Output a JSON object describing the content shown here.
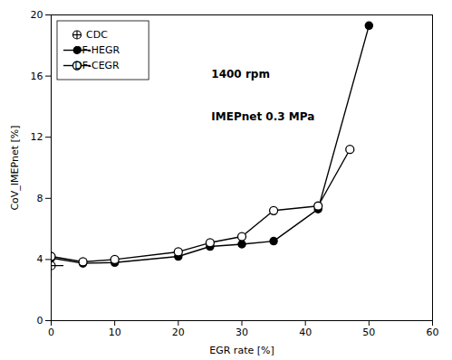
{
  "chart_data": {
    "type": "line",
    "xlabel": "EGR rate [%]",
    "ylabel": "CoV_IMEPnet [%]",
    "xlim": [
      0,
      60
    ],
    "ylim": [
      0,
      20
    ],
    "xticks": [
      0,
      10,
      20,
      30,
      40,
      50,
      60
    ],
    "yticks": [
      0,
      4,
      8,
      12,
      16,
      20
    ],
    "grid": false,
    "legend": "upper-left",
    "annotations": [
      "1400 rpm",
      "IMEPnet 0.3 MPa"
    ],
    "series": [
      {
        "name": "CDC",
        "color": "#000000",
        "marker": "circle-plus",
        "line_style": "none",
        "x": [
          0
        ],
        "values": [
          3.6
        ]
      },
      {
        "name": "DF-HEGR",
        "color": "#000000",
        "marker": "circle",
        "line_style": "solid",
        "x": [
          0,
          5,
          10,
          20,
          25,
          30,
          35,
          42,
          50
        ],
        "values": [
          4.1,
          3.75,
          3.8,
          4.2,
          4.85,
          5.0,
          5.2,
          7.3,
          19.3
        ]
      },
      {
        "name": "DF-CEGR",
        "color": "#000000",
        "marker": "circle-open",
        "line_style": "solid",
        "x": [
          0,
          5,
          10,
          20,
          25,
          30,
          35,
          42,
          47
        ],
        "values": [
          4.2,
          3.85,
          4.0,
          4.5,
          5.1,
          5.5,
          7.2,
          7.5,
          11.2
        ]
      }
    ]
  }
}
